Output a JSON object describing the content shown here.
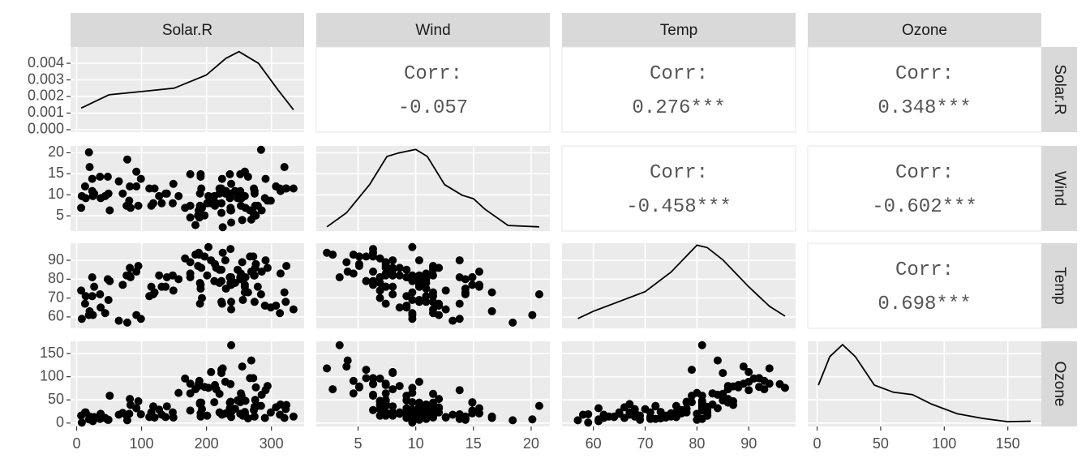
{
  "chart_data": {
    "type": "scatter-matrix",
    "corr_label": "Corr:",
    "variables": [
      {
        "name": "Solar.R",
        "lim": [
          -9.35,
          350.35
        ],
        "ticks": [
          0,
          100,
          200,
          300
        ],
        "values": [
          190,
          118,
          149,
          313,
          299,
          99,
          19,
          256,
          290,
          274,
          65,
          334,
          307,
          78,
          322,
          44,
          8,
          320,
          25,
          92,
          13,
          252,
          223,
          279,
          127,
          291,
          323,
          148,
          191,
          284,
          37,
          120,
          137,
          269,
          248,
          236,
          175,
          314,
          276,
          267,
          272,
          175,
          264,
          175,
          48,
          260,
          274,
          285,
          187,
          220,
          7,
          294,
          223,
          81,
          82,
          213,
          275,
          253,
          254,
          83,
          24,
          77,
          255,
          229,
          207,
          192,
          273,
          157,
          71,
          51,
          115,
          244,
          190,
          259,
          36,
          212,
          238,
          215,
          203,
          225,
          237,
          188,
          167,
          197,
          183,
          189,
          95,
          92,
          252,
          220,
          230,
          259,
          236,
          259,
          238,
          24,
          112,
          237,
          224,
          27,
          238,
          201,
          238,
          14,
          139,
          49,
          20,
          193,
          191,
          131,
          223
        ],
        "density": {
          "x": [
            7,
            50,
            100,
            150,
            200,
            230,
            250,
            280,
            310,
            334
          ],
          "y": [
            0.0013,
            0.0021,
            0.0023,
            0.0025,
            0.0033,
            0.0043,
            0.0047,
            0.004,
            0.0024,
            0.0012
          ],
          "ylim": [
            -0.00015,
            0.00498
          ],
          "yticks": [
            {
              "value": 0,
              "label": "0.000"
            },
            {
              "value": 0.001,
              "label": "0.001"
            },
            {
              "value": 0.002,
              "label": "0.002"
            },
            {
              "value": 0.003,
              "label": "0.003"
            },
            {
              "value": 0.004,
              "label": "0.004"
            }
          ]
        }
      },
      {
        "name": "Wind",
        "lim": [
          1.38,
          21.62
        ],
        "ticks": [
          5,
          10,
          15,
          20
        ],
        "values": [
          7.4,
          8.0,
          12.6,
          11.5,
          8.6,
          13.8,
          20.1,
          9.7,
          9.2,
          10.9,
          13.2,
          11.5,
          12.0,
          18.4,
          11.5,
          9.7,
          9.7,
          16.6,
          9.7,
          12.0,
          12.0,
          14.9,
          5.7,
          7.4,
          9.7,
          13.8,
          11.5,
          8.0,
          14.9,
          20.7,
          9.2,
          11.5,
          10.3,
          4.1,
          9.2,
          9.2,
          4.6,
          10.9,
          5.1,
          6.3,
          5.7,
          7.4,
          14.3,
          14.9,
          14.3,
          6.9,
          10.3,
          6.3,
          5.1,
          11.5,
          6.9,
          8.6,
          8.0,
          8.6,
          12.0,
          7.4,
          7.4,
          7.4,
          9.2,
          6.9,
          13.8,
          7.4,
          4.0,
          10.3,
          8.0,
          11.5,
          11.5,
          9.7,
          10.3,
          6.3,
          7.4,
          10.9,
          10.3,
          15.5,
          14.3,
          9.7,
          3.4,
          8.0,
          9.7,
          2.3,
          6.3,
          6.3,
          6.9,
          5.1,
          2.8,
          4.6,
          7.4,
          15.5,
          10.9,
          10.3,
          10.9,
          9.7,
          14.9,
          15.5,
          6.3,
          10.9,
          11.5,
          6.9,
          13.8,
          10.3,
          10.3,
          8.0,
          12.6,
          9.2,
          10.3,
          10.3,
          16.6,
          6.9,
          14.3,
          8.0,
          11.5
        ],
        "density": {
          "x": [
            2.3,
            4,
            6,
            7.5,
            8.5,
            10,
            11,
            12.5,
            14,
            15,
            16,
            18,
            20.7
          ],
          "y": [
            0.01,
            0.03,
            0.07,
            0.11,
            0.115,
            0.12,
            0.11,
            0.07,
            0.055,
            0.05,
            0.035,
            0.012,
            0.01
          ],
          "ylim": [
            0.004,
            0.125
          ]
        }
      },
      {
        "name": "Temp",
        "lim": [
          53.95,
          99.05
        ],
        "ticks": [
          60,
          70,
          80,
          90
        ],
        "values": [
          67,
          72,
          74,
          62,
          65,
          59,
          61,
          69,
          66,
          68,
          58,
          64,
          66,
          57,
          68,
          62,
          59,
          73,
          61,
          61,
          67,
          81,
          79,
          76,
          82,
          90,
          87,
          82,
          77,
          72,
          65,
          73,
          76,
          84,
          85,
          81,
          83,
          83,
          88,
          92,
          92,
          89,
          73,
          81,
          80,
          81,
          82,
          84,
          87,
          85,
          74,
          86,
          85,
          82,
          86,
          88,
          86,
          83,
          81,
          81,
          81,
          82,
          89,
          90,
          90,
          86,
          82,
          80,
          77,
          79,
          76,
          78,
          78,
          77,
          72,
          79,
          81,
          86,
          97,
          94,
          96,
          94,
          91,
          92,
          93,
          93,
          87,
          84,
          80,
          78,
          75,
          73,
          81,
          76,
          77,
          71,
          71,
          78,
          67,
          76,
          68,
          82,
          64,
          71,
          81,
          69,
          63,
          70,
          75,
          76,
          68
        ],
        "density": {
          "x": [
            57,
            60,
            65,
            70,
            75,
            80,
            82,
            85,
            90,
            94,
            97
          ],
          "y": [
            0.011,
            0.014,
            0.018,
            0.022,
            0.03,
            0.041,
            0.04,
            0.035,
            0.024,
            0.016,
            0.012
          ],
          "ylim": [
            0.007,
            0.0418
          ]
        }
      },
      {
        "name": "Ozone",
        "lim": [
          -7.35,
          176.35
        ],
        "ticks": [
          0,
          50,
          100,
          150
        ],
        "values": [
          41,
          36,
          12,
          18,
          23,
          19,
          8,
          16,
          11,
          14,
          18,
          14,
          34,
          6,
          30,
          11,
          1,
          11,
          4,
          32,
          23,
          45,
          115,
          37,
          29,
          71,
          39,
          23,
          21,
          37,
          20,
          12,
          13,
          135,
          49,
          32,
          64,
          40,
          77,
          97,
          97,
          85,
          10,
          27,
          7,
          48,
          35,
          61,
          79,
          63,
          16,
          80,
          108,
          20,
          52,
          82,
          50,
          64,
          59,
          39,
          9,
          16,
          122,
          89,
          110,
          44,
          28,
          65,
          22,
          59,
          23,
          31,
          44,
          21,
          9,
          45,
          168,
          73,
          76,
          118,
          84,
          85,
          96,
          78,
          73,
          91,
          47,
          32,
          20,
          23,
          21,
          24,
          44,
          21,
          28,
          9,
          13,
          46,
          18,
          13,
          24,
          16,
          13,
          23,
          36,
          7,
          14,
          30,
          14,
          18,
          20
        ],
        "density": {
          "x": [
            1,
            10,
            20,
            30,
            45,
            60,
            75,
            90,
            110,
            130,
            150,
            168
          ],
          "y": [
            0.008,
            0.014,
            0.0165,
            0.014,
            0.008,
            0.0065,
            0.006,
            0.004,
            0.002,
            0.001,
            0.0003,
            0.0004
          ],
          "ylim": [
            -0.0007,
            0.0172
          ]
        }
      }
    ],
    "correlations": [
      {
        "row": "Solar.R",
        "col": "Wind",
        "value": "-0.057"
      },
      {
        "row": "Solar.R",
        "col": "Temp",
        "value": "0.276***"
      },
      {
        "row": "Solar.R",
        "col": "Ozone",
        "value": "0.348***"
      },
      {
        "row": "Wind",
        "col": "Temp",
        "value": "-0.458***"
      },
      {
        "row": "Wind",
        "col": "Ozone",
        "value": "-0.602***"
      },
      {
        "row": "Temp",
        "col": "Ozone",
        "value": "0.698***"
      }
    ]
  }
}
